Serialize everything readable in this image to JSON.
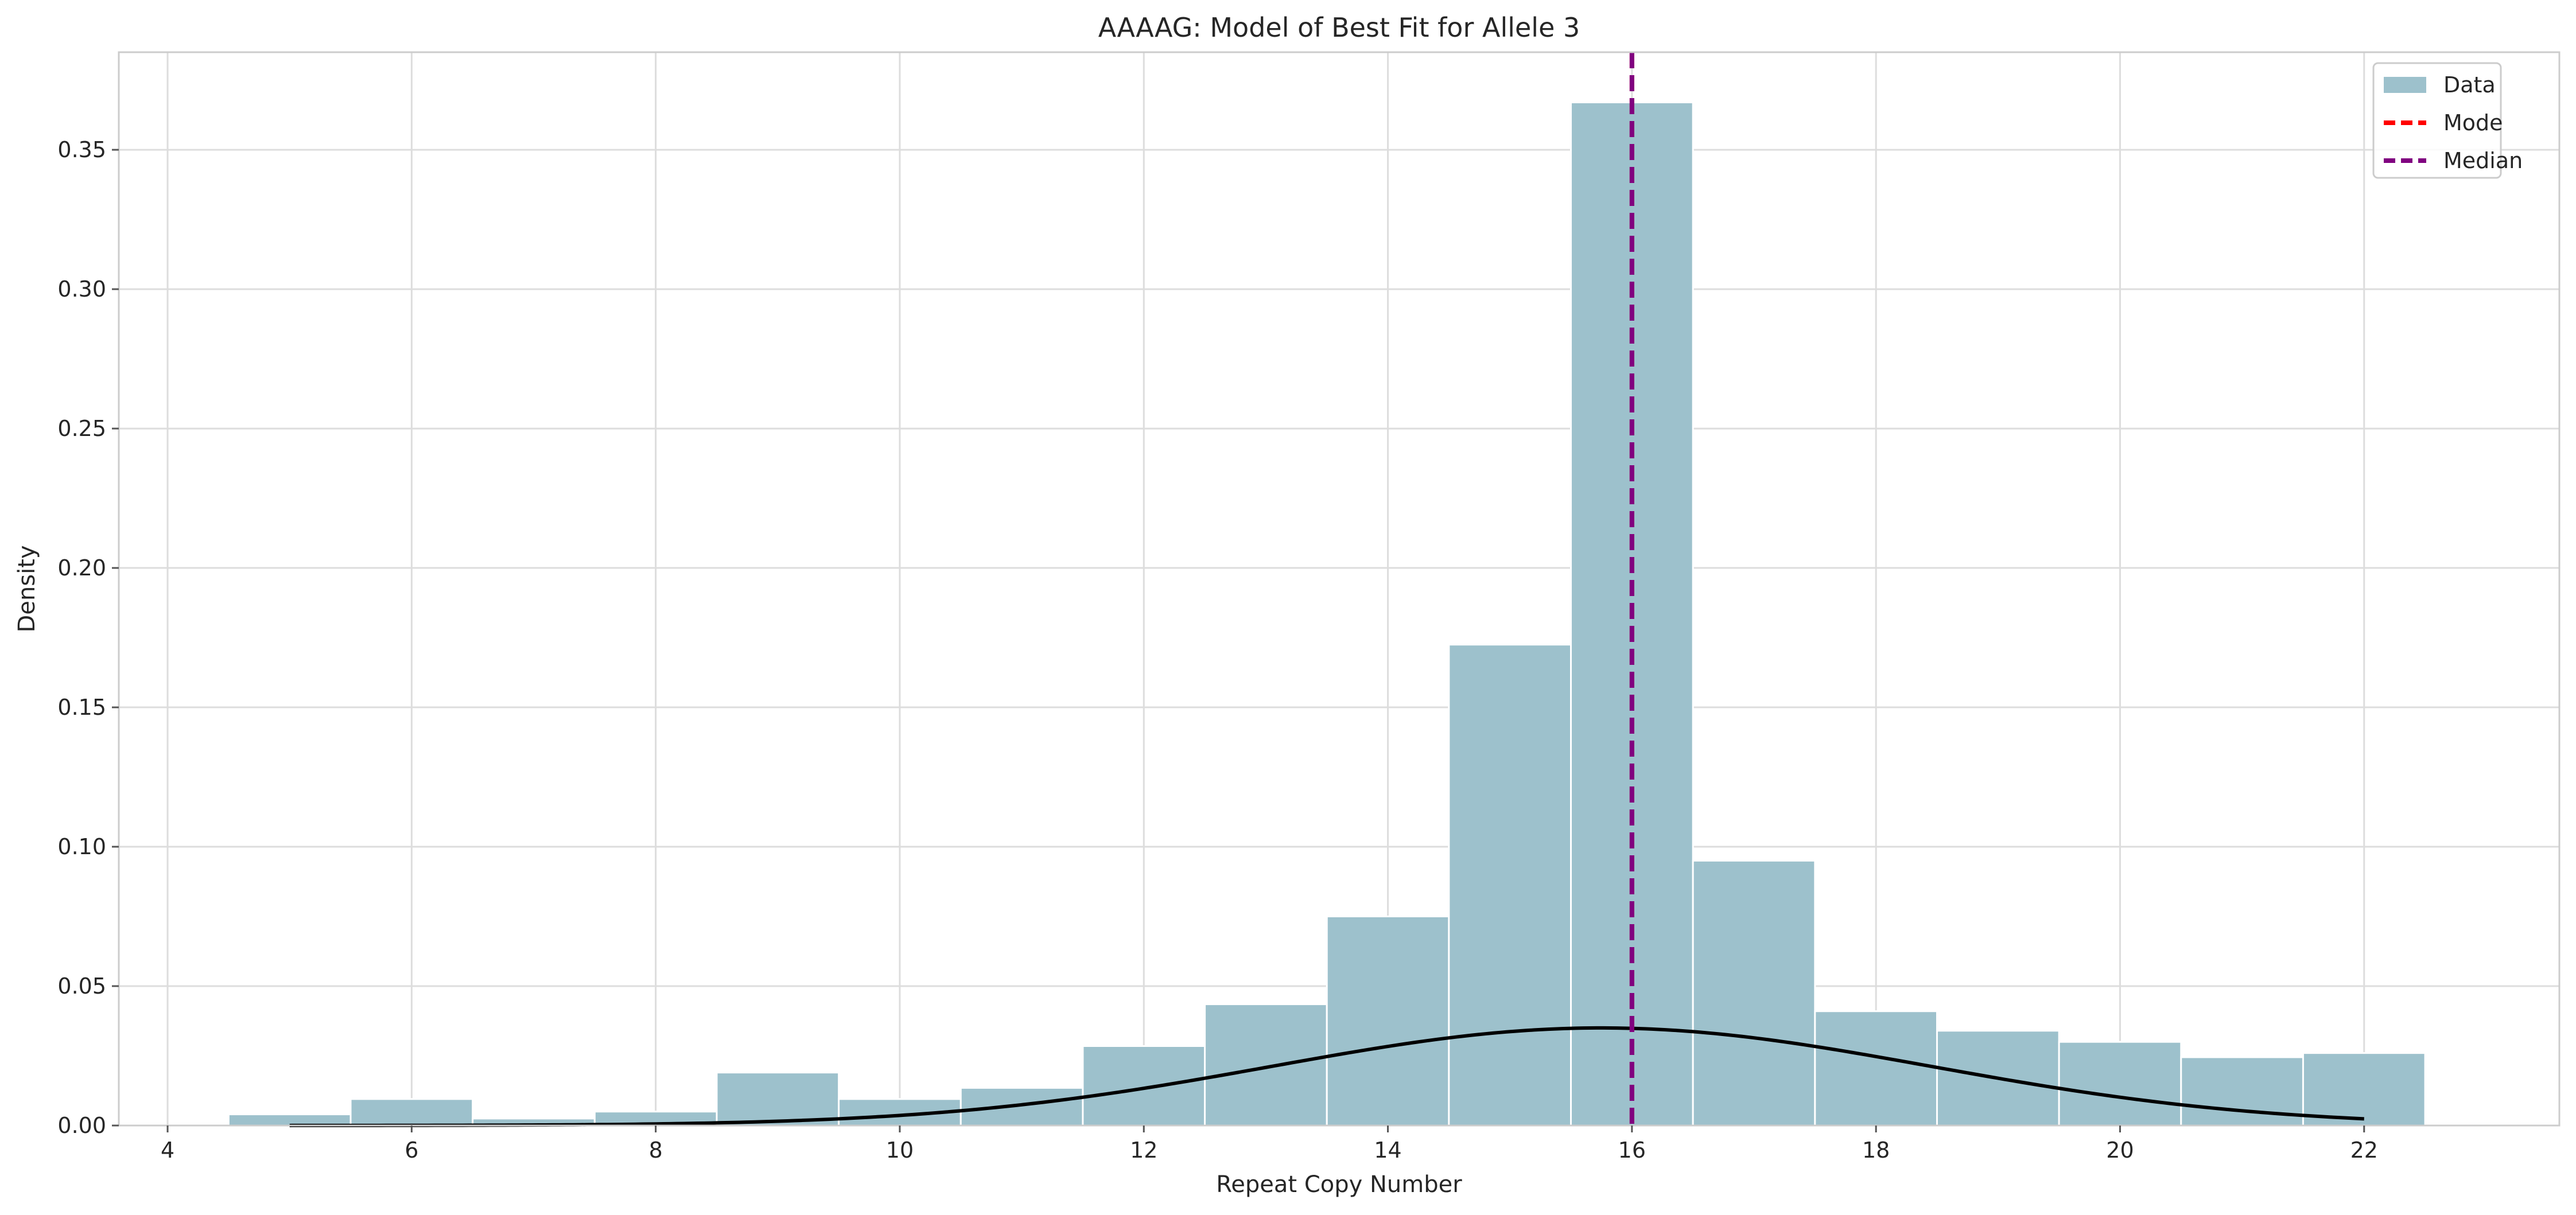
{
  "chart_data": {
    "type": "bar",
    "title": "AAAAG: Model of Best Fit for Allele 3",
    "xlabel": "Repeat Copy Number",
    "ylabel": "Density",
    "xlim": [
      3.6,
      23.6
    ],
    "ylim": [
      0,
      0.385
    ],
    "grid": true,
    "legend_placement": "top-right",
    "x_ticks": [
      4,
      6,
      8,
      10,
      12,
      14,
      16,
      18,
      20,
      22
    ],
    "x_tick_labels": [
      "4",
      "6",
      "8",
      "10",
      "12",
      "14",
      "16",
      "18",
      "20",
      "22"
    ],
    "y_ticks": [
      0,
      0.05,
      0.1,
      0.15,
      0.2,
      0.25,
      0.3,
      0.35
    ],
    "y_tick_labels": [
      "0.00",
      "0.05",
      "0.10",
      "0.15",
      "0.20",
      "0.25",
      "0.30",
      "0.35"
    ],
    "histogram": {
      "name": "Data",
      "color": "#9dc1cc",
      "bin_width": 1,
      "bin_centers": [
        5,
        6,
        7,
        8,
        9,
        10,
        11,
        12,
        13,
        14,
        15,
        16,
        17,
        18,
        19,
        20,
        21,
        22
      ],
      "values": [
        0.004,
        0.0095,
        0.0025,
        0.005,
        0.019,
        0.0095,
        0.0135,
        0.0285,
        0.0435,
        0.075,
        0.1725,
        0.367,
        0.095,
        0.041,
        0.034,
        0.03,
        0.0245,
        0.026
      ]
    },
    "fit_curve": {
      "color": "#000000",
      "x_range": [
        5,
        22
      ],
      "mu": 15.75,
      "sigma": 2.7,
      "peak": 0.035
    },
    "mode_line": {
      "name": "Mode",
      "x": 16,
      "color": "#ff0000"
    },
    "median_line": {
      "name": "Median",
      "x": 16,
      "color": "#800080"
    },
    "legend": [
      {
        "label": "Data",
        "kind": "patch",
        "color": "#9dc1cc"
      },
      {
        "label": "Mode",
        "kind": "dashed-line",
        "color": "#ff0000"
      },
      {
        "label": "Median",
        "kind": "dashed-line",
        "color": "#800080"
      }
    ]
  }
}
